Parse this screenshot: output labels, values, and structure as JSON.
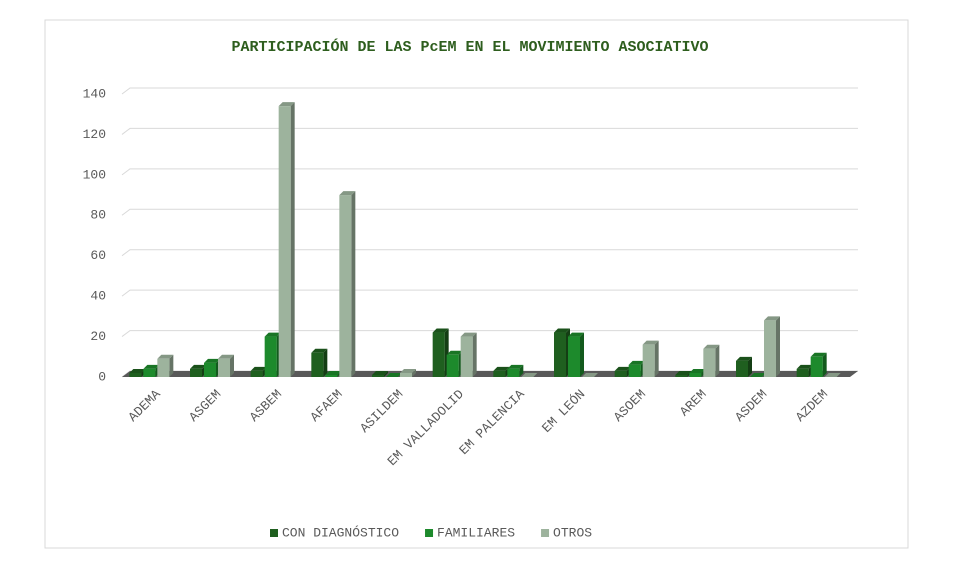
{
  "chart_data": {
    "type": "bar3d",
    "title": "PARTICIPACIÓN DE LAS PcEM EN EL MOVIMIENTO ASOCIATIVO",
    "categories": [
      "ADEMA",
      "ASGEM",
      "ASBEM",
      "AFAEM",
      "ASILDEM",
      "EM VALLADOLID",
      "EM PALENCIA",
      "EM LEÓN",
      "ASOEM",
      "AREM",
      "ASDEM",
      "AZDEM"
    ],
    "series": [
      {
        "name": "CON DIAGNÓSTICO",
        "color": "#1f5f1f",
        "values": [
          2,
          4,
          3,
          12,
          1,
          22,
          3,
          22,
          3,
          1,
          8,
          4
        ]
      },
      {
        "name": "FAMILIARES",
        "color": "#1d8a2c",
        "values": [
          4,
          7,
          20,
          1,
          0,
          11,
          4,
          20,
          6,
          2,
          0,
          10
        ]
      },
      {
        "name": "OTROS",
        "color": "#9db39d",
        "values": [
          9,
          9,
          134,
          90,
          2,
          20,
          0,
          0,
          16,
          14,
          28,
          0
        ]
      }
    ],
    "ylim": [
      0,
      140
    ],
    "yticks": [
      0,
      20,
      40,
      60,
      80,
      100,
      120,
      140
    ],
    "grid": true,
    "legend": "bottom"
  }
}
